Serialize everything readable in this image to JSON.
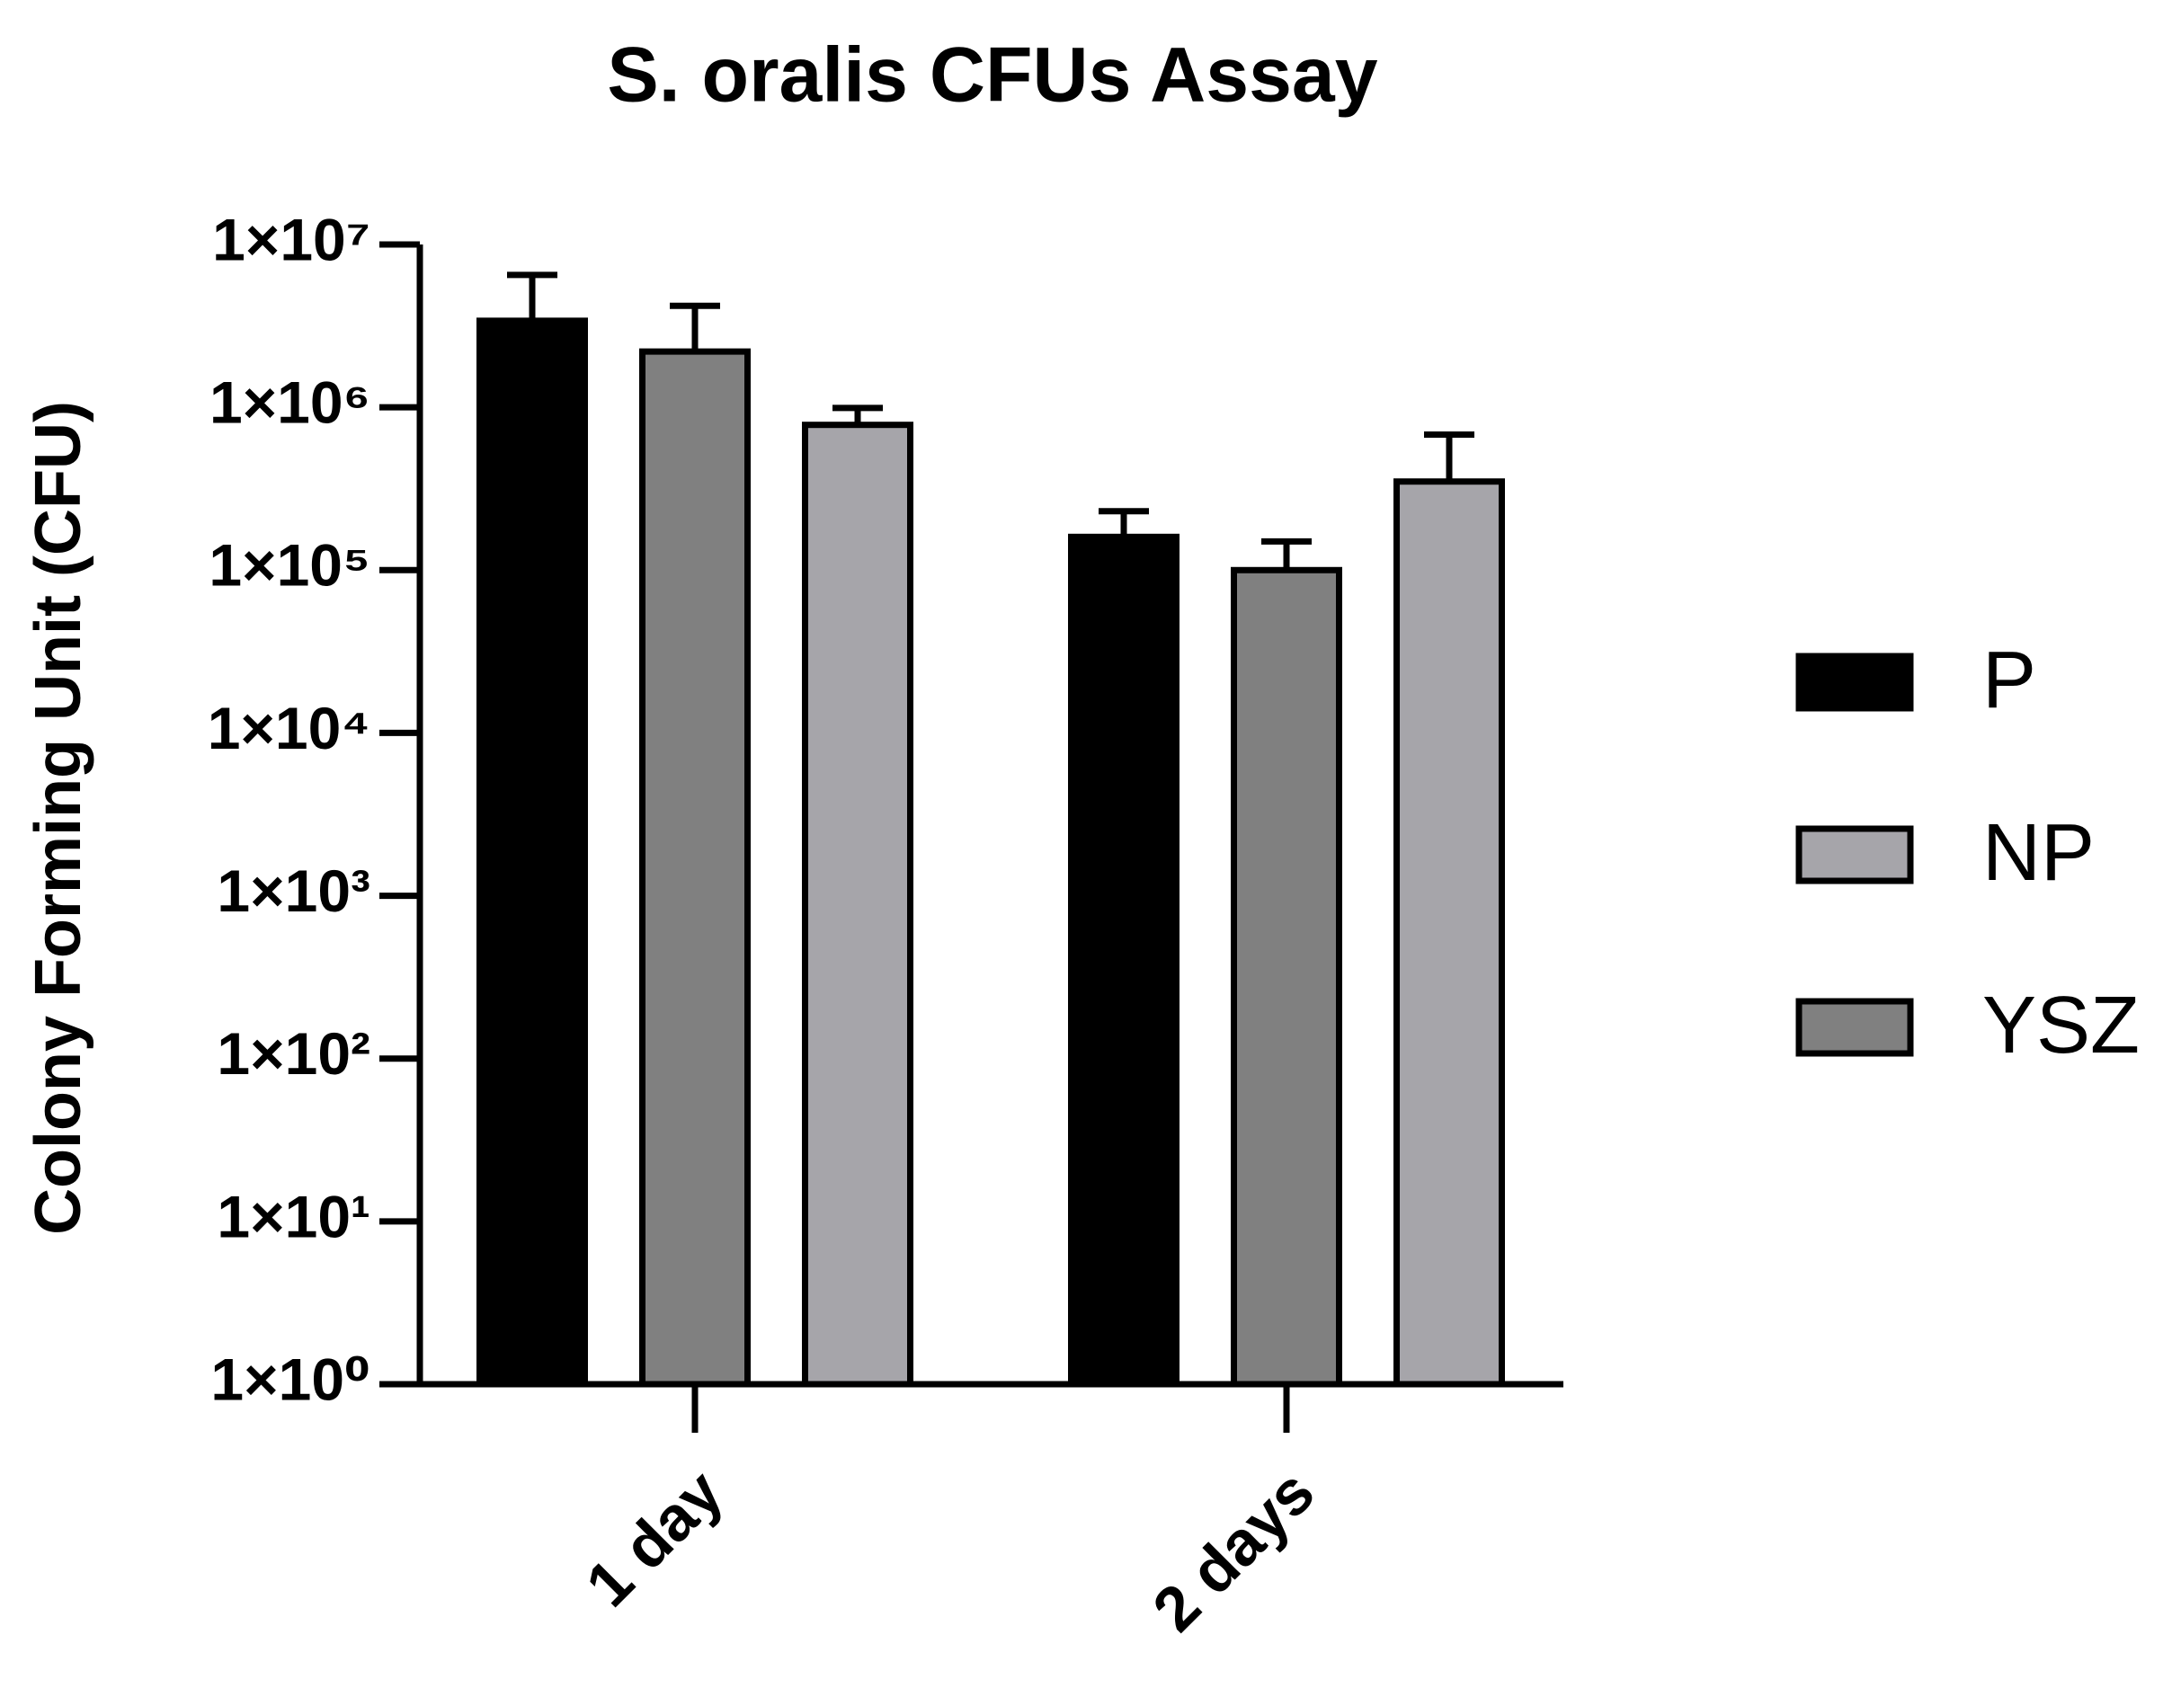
{
  "chart_data": {
    "type": "bar",
    "title": "S. oralis CFUs Assay",
    "y_label": "Colony Forming Unit (CFU)",
    "categories": [
      "1 day",
      "2 days"
    ],
    "series": [
      {
        "name": "P",
        "color": "#000000",
        "values": [
          3400000,
          160000
        ],
        "errors": [
          3100000,
          70000
        ]
      },
      {
        "name": "NP",
        "color": "#a6a5aa",
        "values": [
          780000,
          350000
        ],
        "errors": [
          210000,
          330000
        ]
      },
      {
        "name": "YSZ",
        "color": "#808080",
        "values": [
          2200000,
          100000
        ],
        "errors": [
          2000000,
          50000
        ]
      }
    ],
    "bar_order": [
      0,
      2,
      1
    ],
    "y_scale": "log",
    "ylim": [
      1,
      10000000
    ],
    "yticks": [
      {
        "value": 1,
        "label": "1×10⁰"
      },
      {
        "value": 10,
        "label": "1×10¹"
      },
      {
        "value": 100,
        "label": "1×10²"
      },
      {
        "value": 1000,
        "label": "1×10³"
      },
      {
        "value": 10000,
        "label": "1×10⁴"
      },
      {
        "value": 100000,
        "label": "1×10⁵"
      },
      {
        "value": 1000000,
        "label": "1×10⁶"
      },
      {
        "value": 10000000,
        "label": "1×10⁷"
      }
    ],
    "legend_position": "right"
  }
}
